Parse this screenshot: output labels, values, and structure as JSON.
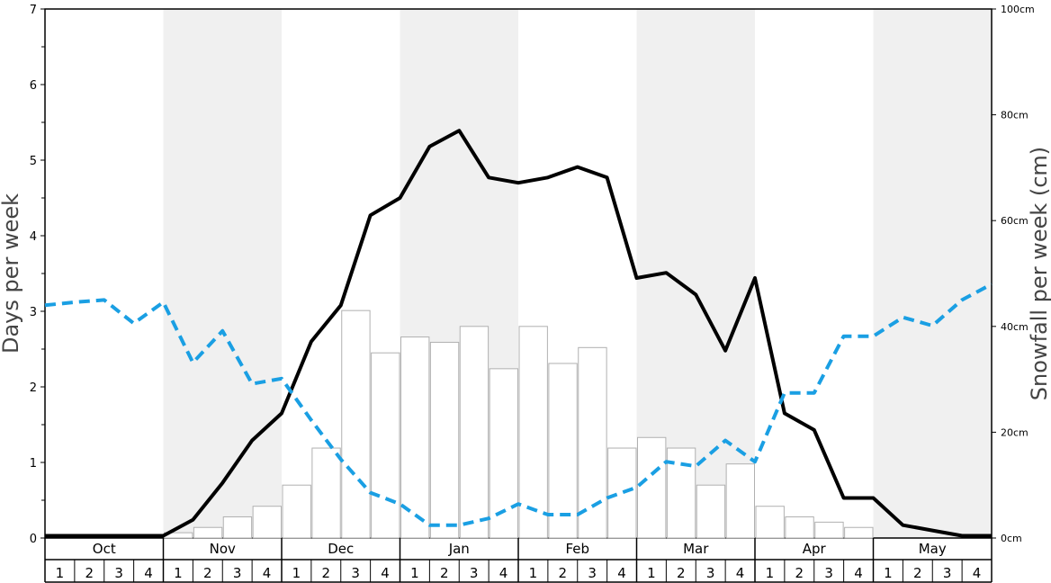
{
  "chart_data": {
    "type": "bar",
    "left_axis": {
      "label": "Days per week",
      "ylim": [
        0,
        7
      ],
      "ticks": [
        "0",
        "1",
        "2",
        "3",
        "4",
        "5",
        "6",
        "7"
      ]
    },
    "right_axis": {
      "label": "Snowfall per week (cm)",
      "ylim": [
        0,
        100
      ],
      "ticks": [
        "0cm",
        "20cm",
        "40cm",
        "60cm",
        "80cm",
        "100cm"
      ]
    },
    "months": [
      "Oct",
      "Nov",
      "Dec",
      "Jan",
      "Feb",
      "Mar",
      "Apr",
      "May"
    ],
    "weeks": [
      "1",
      "2",
      "3",
      "4"
    ],
    "shaded_months": [
      "Nov",
      "Jan",
      "Mar",
      "May"
    ],
    "colors": {
      "bar_fill": "#ffffff",
      "bar_stroke": "#b0b0b0",
      "solid_line": "#000000",
      "dashed_line": "#1a9fe3",
      "shade": "#f0f0f0"
    },
    "series": [
      {
        "type": "bar",
        "axis": "right",
        "values": [
          0,
          0,
          0,
          0,
          1,
          2,
          4,
          6,
          10,
          17,
          43,
          35,
          38,
          37,
          40,
          32,
          40,
          33,
          36,
          17,
          19,
          17,
          10,
          14,
          6,
          4,
          3,
          2,
          0,
          0,
          0,
          0
        ]
      },
      {
        "type": "line",
        "style": "solid",
        "axis": "left",
        "values": [
          0.03,
          0.03,
          0.03,
          0.03,
          0.03,
          0.24,
          0.73,
          1.29,
          1.65,
          2.6,
          3.08,
          4.27,
          4.5,
          5.18,
          5.39,
          4.77,
          4.7,
          4.77,
          4.91,
          4.77,
          3.44,
          3.51,
          3.22,
          2.48,
          3.44,
          1.65,
          1.43,
          0.53,
          0.53,
          0.17,
          0.1,
          0.03,
          0.03
        ]
      },
      {
        "type": "line",
        "style": "dashed",
        "axis": "left",
        "values": [
          3.08,
          3.12,
          3.15,
          2.84,
          3.12,
          2.32,
          2.74,
          2.04,
          2.11,
          1.56,
          1.04,
          0.6,
          0.45,
          0.17,
          0.17,
          0.26,
          0.45,
          0.31,
          0.31,
          0.53,
          0.67,
          1.01,
          0.95,
          1.29,
          1.01,
          1.92,
          1.92,
          2.67,
          2.67,
          2.92,
          2.81,
          3.15,
          3.36
        ]
      }
    ]
  }
}
